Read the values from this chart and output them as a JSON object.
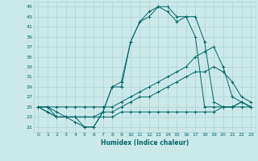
{
  "xlabel": "Humidex (Indice chaleur)",
  "ylabel": "",
  "xlim": [
    -0.5,
    23.5
  ],
  "ylim": [
    20,
    46
  ],
  "yticks": [
    21,
    23,
    25,
    27,
    29,
    31,
    33,
    35,
    37,
    39,
    41,
    43,
    45
  ],
  "xticks": [
    0,
    1,
    2,
    3,
    4,
    5,
    6,
    7,
    8,
    9,
    10,
    11,
    12,
    13,
    14,
    15,
    16,
    17,
    18,
    19,
    20,
    21,
    22,
    23
  ],
  "bg_color": "#cce9e9",
  "grid_color": "#aad4d4",
  "line_color": "#006666",
  "lines": [
    {
      "x": [
        0,
        1,
        2,
        3,
        4,
        5,
        6,
        7,
        8,
        9,
        10,
        11,
        12,
        13,
        14,
        15,
        16,
        17,
        18,
        19,
        20,
        21,
        22,
        23
      ],
      "y": [
        25,
        24,
        23,
        23,
        23,
        21,
        21,
        24,
        29,
        30,
        38,
        42,
        44,
        45,
        45,
        43,
        43,
        39,
        25,
        25,
        25,
        25,
        26,
        25
      ]
    },
    {
      "x": [
        0,
        1,
        2,
        3,
        4,
        5,
        6,
        7,
        8,
        9,
        10,
        11,
        12,
        13,
        14,
        15,
        16,
        17,
        18,
        19,
        20,
        21,
        22,
        23
      ],
      "y": [
        25,
        24,
        23,
        23,
        22,
        21,
        21,
        24,
        29,
        29,
        38,
        42,
        43,
        45,
        44,
        42,
        43,
        43,
        38,
        26,
        25,
        25,
        26,
        25
      ]
    },
    {
      "x": [
        0,
        1,
        2,
        3,
        4,
        5,
        6,
        7,
        8,
        9,
        10,
        11,
        12,
        13,
        14,
        15,
        16,
        17,
        18,
        19,
        20,
        21,
        22,
        23
      ],
      "y": [
        25,
        25,
        25,
        25,
        25,
        25,
        25,
        25,
        25,
        26,
        27,
        28,
        29,
        30,
        31,
        32,
        33,
        35,
        36,
        37,
        33,
        27,
        26,
        25
      ]
    },
    {
      "x": [
        0,
        1,
        2,
        3,
        4,
        5,
        6,
        7,
        8,
        9,
        10,
        11,
        12,
        13,
        14,
        15,
        16,
        17,
        18,
        19,
        20,
        21,
        22,
        23
      ],
      "y": [
        25,
        25,
        23,
        23,
        23,
        23,
        23,
        23,
        23,
        24,
        24,
        24,
        24,
        24,
        24,
        24,
        24,
        24,
        24,
        24,
        25,
        25,
        25,
        25
      ]
    },
    {
      "x": [
        0,
        1,
        2,
        3,
        4,
        5,
        6,
        7,
        8,
        9,
        10,
        11,
        12,
        13,
        14,
        15,
        16,
        17,
        18,
        19,
        20,
        21,
        22,
        23
      ],
      "y": [
        25,
        25,
        24,
        23,
        23,
        23,
        23,
        24,
        24,
        25,
        26,
        27,
        27,
        28,
        29,
        30,
        31,
        32,
        32,
        33,
        32,
        30,
        27,
        26
      ]
    }
  ]
}
